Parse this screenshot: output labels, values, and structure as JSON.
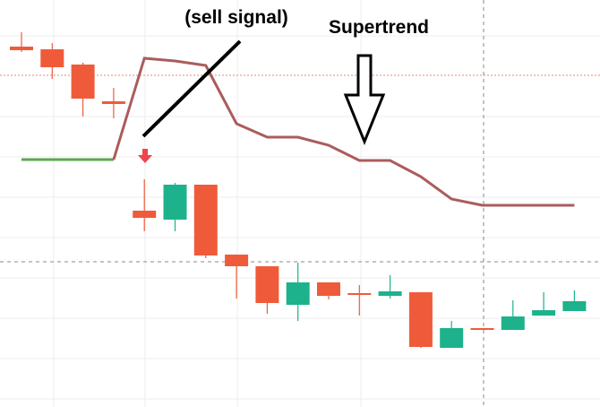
{
  "chart_data": {
    "type": "candlestick",
    "annotations": [
      "(sell signal)",
      "Supertrend"
    ],
    "categories": [
      null,
      null,
      null,
      null,
      null,
      null,
      null,
      null,
      null,
      null,
      null,
      null,
      null,
      null,
      null,
      null,
      null,
      null,
      null
    ],
    "open": [
      402,
      399,
      382,
      341,
      219,
      209,
      248,
      170,
      157,
      114,
      139,
      127,
      124,
      128,
      66,
      88,
      86,
      102,
      107
    ],
    "high": [
      418,
      406,
      384,
      356,
      254,
      250,
      248,
      170,
      157,
      161,
      139,
      136,
      147,
      128,
      96,
      88,
      119,
      128,
      130
    ],
    "low": [
      396,
      366,
      324,
      322,
      196,
      196,
      166,
      121,
      104,
      96,
      120,
      102,
      121,
      66,
      66,
      86,
      86,
      102,
      107
    ],
    "close": [
      398,
      379,
      344,
      338,
      211,
      248,
      169,
      157,
      116,
      139,
      124,
      125,
      129,
      67,
      88,
      86,
      101,
      108,
      118
    ],
    "up_color": "#1db28c",
    "down_color": "#ef5b3a",
    "series": [
      {
        "color": "#5aa74e",
        "values": [
          276,
          276,
          276,
          276,
          null,
          null,
          null,
          null,
          null,
          null,
          null,
          null,
          null,
          null,
          null,
          null,
          null,
          null,
          null
        ]
      },
      {
        "color": "#ab5c5c",
        "values": [
          null,
          null,
          null,
          276,
          389,
          386,
          381,
          316,
          301,
          301,
          292,
          275,
          275,
          257,
          232,
          225,
          225,
          225,
          225
        ]
      }
    ],
    "ylim": [
      0,
      454
    ]
  }
}
